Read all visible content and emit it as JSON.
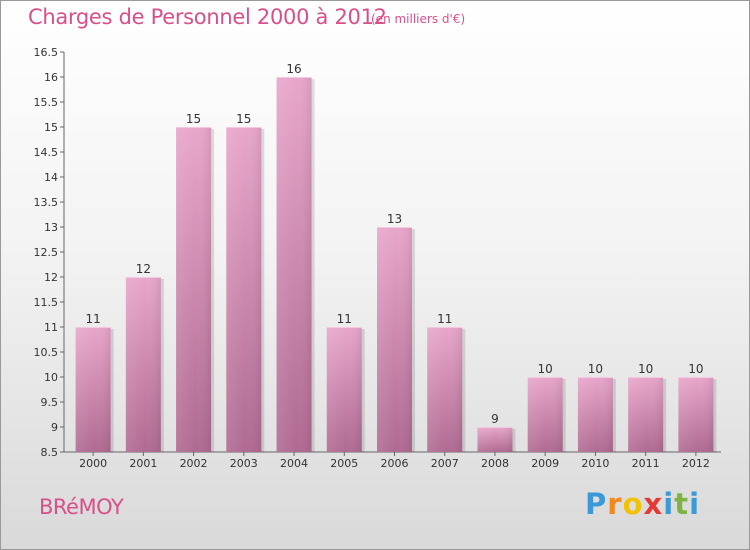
{
  "header": {
    "title": "Charges de Personnel 2000 à 2012",
    "subtitle": "(en milliers d'€)"
  },
  "footer": {
    "commune": "BRéMOY",
    "logo": {
      "letters": [
        "P",
        "r",
        "o",
        "x",
        "i",
        "t",
        "i"
      ],
      "colors": [
        "#3a9ad9",
        "#f08a1c",
        "#f2c200",
        "#e53935",
        "#3a9ad9",
        "#7cb342",
        "#3a9ad9"
      ]
    }
  },
  "chart_data": {
    "type": "bar",
    "categories": [
      "2000",
      "2001",
      "2002",
      "2003",
      "2004",
      "2005",
      "2006",
      "2007",
      "2008",
      "2009",
      "2010",
      "2011",
      "2012"
    ],
    "values": [
      11,
      12,
      15,
      15,
      16,
      11,
      13,
      11,
      9,
      10,
      10,
      10,
      10
    ],
    "data_labels": [
      "11",
      "12",
      "15",
      "15",
      "16",
      "11",
      "13",
      "11",
      "9",
      "10",
      "10",
      "10",
      "10"
    ],
    "title": "Charges de Personnel 2000 à 2012",
    "xlabel": "",
    "ylabel": "",
    "ylim": [
      8.5,
      16.5
    ],
    "yticks": [
      "8.5",
      "9",
      "9.5",
      "10",
      "10.5",
      "11",
      "11.5",
      "12",
      "12.5",
      "13",
      "13.5",
      "14",
      "14.5",
      "15",
      "15.5",
      "16",
      "16.5"
    ],
    "grid": false,
    "bar_color": "#d98cb5",
    "legend": "none"
  }
}
